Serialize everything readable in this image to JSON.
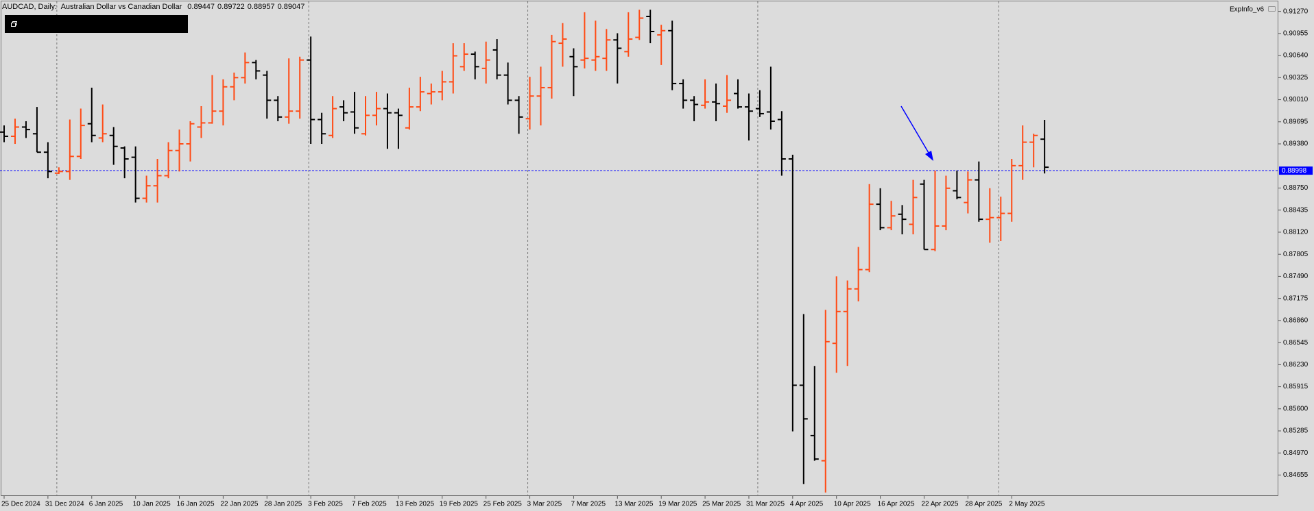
{
  "chart_data": {
    "type": "ohlc",
    "title": "AUDCAD, Daily:  Australian Dollar vs Canadian Dollar",
    "indicator_label": "ExpInfo_v6",
    "up_color": "#ff4a14",
    "down_color": "#000000",
    "bid_color": "#0000ff",
    "bid": 0.88998,
    "categories": [
      "25 Dec 2024",
      null,
      null,
      null,
      "31 Dec 2024",
      null,
      null,
      null,
      "6 Jan 2025",
      null,
      null,
      null,
      "10 Jan 2025",
      null,
      null,
      null,
      "16 Jan 2025",
      null,
      null,
      null,
      "22 Jan 2025",
      null,
      null,
      null,
      "28 Jan 2025",
      null,
      null,
      null,
      "3 Feb 2025",
      null,
      null,
      null,
      "7 Feb 2025",
      null,
      null,
      null,
      "13 Feb 2025",
      null,
      null,
      null,
      "19 Feb 2025",
      null,
      null,
      null,
      "25 Feb 2025",
      null,
      null,
      null,
      "3 Mar 2025",
      null,
      null,
      null,
      "7 Mar 2025",
      null,
      null,
      null,
      "13 Mar 2025",
      null,
      null,
      null,
      "19 Mar 2025",
      null,
      null,
      null,
      "25 Mar 2025",
      null,
      null,
      null,
      "31 Mar 2025",
      null,
      null,
      null,
      "4 Apr 2025",
      null,
      null,
      null,
      "10 Apr 2025",
      null,
      null,
      null,
      "16 Apr 2025",
      null,
      null,
      null,
      "22 Apr 2025",
      null,
      null,
      null,
      "28 Apr 2025",
      null,
      null,
      null,
      "2 May 2025",
      null,
      null,
      null
    ],
    "open": [
      0.89548,
      0.89488,
      0.8962,
      0.89524,
      0.89261,
      0.88962,
      0.88986,
      0.89201,
      0.89667,
      0.89464,
      0.895,
      0.89321,
      0.89189,
      0.88603,
      0.88782,
      0.88926,
      0.89285,
      0.8938,
      0.8962,
      0.89679,
      0.89847,
      0.90194,
      0.90325,
      0.9054,
      0.90361,
      0.90002,
      0.89763,
      0.89847,
      0.90576,
      0.89727,
      0.895,
      0.89907,
      0.89835,
      0.89524,
      0.89787,
      0.89883,
      0.89823,
      0.89608,
      0.89907,
      0.90098,
      0.90122,
      0.90265,
      0.90481,
      0.9066,
      0.90457,
      0.9072,
      0.90361,
      0.90002,
      0.89739,
      0.90062,
      0.90182,
      0.90816,
      0.90624,
      0.90576,
      0.90576,
      0.906,
      0.90863,
      0.90696,
      0.90899,
      0.91198,
      0.90935,
      0.90995,
      0.90241,
      0.90002,
      0.8993,
      0.89978,
      0.89918,
      0.90098,
      0.89907,
      0.89883,
      0.89835,
      0.89727,
      0.89165,
      0.85936,
      0.85218,
      0.84859,
      0.86534,
      0.86988,
      0.87311,
      0.87586,
      0.88519,
      0.88184,
      0.88376,
      0.88232,
      0.88806,
      0.87873,
      0.88208,
      0.88711,
      0.88543,
      0.88866,
      0.88304,
      0.88328,
      0.88388,
      0.89069,
      0.89404,
      0.89447
    ],
    "high": [
      0.89643,
      0.89739,
      0.89703,
      0.89907,
      0.89404,
      0.89045,
      0.89727,
      0.89883,
      0.90182,
      0.89942,
      0.8962,
      0.89344,
      0.89344,
      0.88926,
      0.89165,
      0.89404,
      0.89584,
      0.89703,
      0.89918,
      0.90361,
      0.90301,
      0.90397,
      0.90684,
      0.90576,
      0.90421,
      0.90062,
      0.906,
      0.90624,
      0.90911,
      0.89823,
      0.90062,
      0.90002,
      0.90122,
      0.90062,
      0.90122,
      0.90098,
      0.89883,
      0.90182,
      0.90337,
      0.90241,
      0.90421,
      0.90816,
      0.90816,
      0.90696,
      0.90839,
      0.90875,
      0.9054,
      0.90062,
      0.90337,
      0.90481,
      0.90935,
      0.91103,
      0.90744,
      0.91258,
      0.91138,
      0.91019,
      0.90959,
      0.91258,
      0.91294,
      0.91294,
      0.91079,
      0.91138,
      0.90301,
      0.90062,
      0.90301,
      0.90241,
      0.90361,
      0.90301,
      0.90098,
      0.90146,
      0.90481,
      0.89847,
      0.89225,
      0.86952,
      0.86211,
      0.87012,
      0.87491,
      0.87431,
      0.87909,
      0.88806,
      0.88747,
      0.88567,
      0.88507,
      0.88866,
      0.88866,
      0.88998,
      0.88926,
      0.88998,
      0.88986,
      0.89129,
      0.88747,
      0.88627,
      0.89165,
      0.89643,
      0.89524,
      0.89722
    ],
    "low": [
      0.89404,
      0.8938,
      0.89464,
      0.89261,
      0.8889,
      0.8895,
      0.88866,
      0.89165,
      0.89404,
      0.89404,
      0.89081,
      0.8889,
      0.88543,
      0.88543,
      0.88543,
      0.8889,
      0.88986,
      0.89129,
      0.89464,
      0.89667,
      0.89643,
      0.90002,
      0.90241,
      0.90301,
      0.89739,
      0.89703,
      0.89667,
      0.89739,
      0.8938,
      0.8938,
      0.89464,
      0.89703,
      0.89524,
      0.895,
      0.89643,
      0.89309,
      0.89309,
      0.89584,
      0.89847,
      0.89942,
      0.90002,
      0.90098,
      0.90421,
      0.90301,
      0.90241,
      0.90301,
      0.89942,
      0.89524,
      0.89584,
      0.89643,
      0.90026,
      0.90481,
      0.90062,
      0.90457,
      0.90421,
      0.90421,
      0.90241,
      0.90624,
      0.90863,
      0.90816,
      0.90505,
      0.90146,
      0.89883,
      0.89703,
      0.89883,
      0.89703,
      0.89823,
      0.89883,
      0.89428,
      0.89763,
      0.89584,
      0.88926,
      0.85278,
      0.84525,
      0.84859,
      0.84405,
      0.86115,
      0.86211,
      0.87132,
      0.8755,
      0.88148,
      0.88148,
      0.88089,
      0.88089,
      0.87873,
      0.87849,
      0.88148,
      0.88591,
      0.88388,
      0.88268,
      0.87969,
      0.87993,
      0.88268,
      0.88866,
      0.89045,
      0.88957
    ],
    "close": [
      0.89488,
      0.8962,
      0.89584,
      0.89261,
      0.88986,
      0.88986,
      0.89201,
      0.89643,
      0.895,
      0.89524,
      0.89344,
      0.89165,
      0.88603,
      0.88782,
      0.88926,
      0.89285,
      0.8938,
      0.89667,
      0.89679,
      0.89847,
      0.90194,
      0.90325,
      0.9054,
      0.90421,
      0.90002,
      0.89763,
      0.89847,
      0.90576,
      0.89727,
      0.89524,
      0.89883,
      0.89823,
      0.89608,
      0.89787,
      0.89883,
      0.89823,
      0.89787,
      0.89907,
      0.90122,
      0.90122,
      0.90265,
      0.90636,
      0.9066,
      0.90481,
      0.90576,
      0.90361,
      0.90002,
      0.89763,
      0.90062,
      0.90182,
      0.90839,
      0.90875,
      0.90481,
      0.906,
      0.90624,
      0.90863,
      0.90744,
      0.90875,
      0.91174,
      0.90983,
      0.90995,
      0.90241,
      0.90002,
      0.89942,
      0.89978,
      0.89954,
      0.90002,
      0.89907,
      0.89847,
      0.89811,
      0.89703,
      0.89165,
      0.85936,
      0.85457,
      0.84883,
      0.86558,
      0.86988,
      0.87311,
      0.87586,
      0.88519,
      0.88184,
      0.88352,
      0.88304,
      0.88615,
      0.87873,
      0.88208,
      0.88747,
      0.88615,
      0.88866,
      0.88304,
      0.88328,
      0.88388,
      0.89069,
      0.89404,
      0.895,
      0.89047
    ],
    "ylim": [
      0.84357,
      0.91413
    ],
    "yticks": [
      {
        "value": 0.9127,
        "label": "0.91270"
      },
      0.90955,
      {
        "value": 0.9064,
        "label": "0.90640"
      },
      0.90325,
      {
        "value": 0.9001,
        "label": "0.90010"
      },
      0.89695,
      {
        "value": 0.8938,
        "label": "0.89380"
      },
      {
        "value": 0.8875,
        "label": "0.88750"
      },
      0.88435,
      {
        "value": 0.8812,
        "label": "0.88120"
      },
      0.87805,
      {
        "value": 0.8749,
        "label": "0.87490"
      },
      0.87175,
      {
        "value": 0.8686,
        "label": "0.86860"
      },
      0.86545,
      {
        "value": 0.8623,
        "label": "0.86230"
      },
      0.85915,
      {
        "value": 0.856,
        "label": "0.85600"
      },
      0.85285,
      {
        "value": 0.8497,
        "label": "0.84970"
      },
      0.84655
    ]
  }
}
